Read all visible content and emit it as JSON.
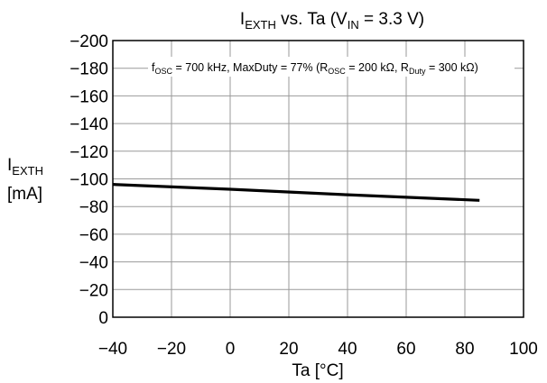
{
  "chart_data": {
    "type": "line",
    "title": {
      "main": "I",
      "main_sub": "EXTH",
      "mid": " vs. Ta (V",
      "mid_sub": "IN",
      "end": " = 3.3 V)"
    },
    "annotation": {
      "p1": "f",
      "p1_sub": "OSC",
      "p2": " = 700 kHz, MaxDuty = 77% (R",
      "p2_sub": "OSC",
      "p3": " = 200 kΩ, R",
      "p3_sub": "Duty",
      "p4": " = 300 kΩ)"
    },
    "ylabel": {
      "main": "I",
      "sub": "EXTH",
      "unit": "[mA]"
    },
    "xlabel": "Ta [°C]",
    "xlim": [
      -40,
      100
    ],
    "ylim": [
      0,
      -200
    ],
    "x_ticks": [
      -40,
      -20,
      0,
      20,
      40,
      60,
      80,
      100
    ],
    "x_tick_labels": [
      "−40",
      "−20",
      "0",
      "20",
      "40",
      "60",
      "80",
      "100"
    ],
    "y_ticks": [
      -200,
      -180,
      -160,
      -140,
      -120,
      -100,
      -80,
      -60,
      -40,
      -20,
      0
    ],
    "y_tick_labels": [
      "−200",
      "−180",
      "−160",
      "−140",
      "−120",
      "−100",
      "−80",
      "−60",
      "−40",
      "−20",
      "0"
    ],
    "grid": true,
    "series": [
      {
        "x": [
          -40,
          0,
          40,
          85
        ],
        "y": [
          -96,
          -92.5,
          -88.5,
          -84.5
        ],
        "color": "#000000"
      }
    ]
  }
}
